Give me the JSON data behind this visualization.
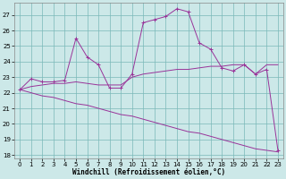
{
  "background_color": "#cce8e8",
  "grid_color": "#7ab8b8",
  "line_color": "#993399",
  "xlim": [
    -0.5,
    23.5
  ],
  "ylim": [
    17.8,
    27.8
  ],
  "yticks": [
    18,
    19,
    20,
    21,
    22,
    23,
    24,
    25,
    26,
    27
  ],
  "xticks": [
    0,
    1,
    2,
    3,
    4,
    5,
    6,
    7,
    8,
    9,
    10,
    11,
    12,
    13,
    14,
    15,
    16,
    17,
    18,
    19,
    20,
    21,
    22,
    23
  ],
  "xlabel": "Windchill (Refroidissement éolien,°C)",
  "series1_x": [
    0,
    1,
    2,
    3,
    4,
    5,
    6,
    7,
    8,
    9,
    10,
    11,
    12,
    13,
    14,
    15,
    16,
    17,
    18,
    19,
    20,
    21,
    22,
    23
  ],
  "series1_y": [
    22.2,
    22.9,
    22.7,
    22.7,
    22.8,
    25.5,
    24.3,
    23.8,
    22.3,
    22.3,
    23.2,
    26.5,
    26.7,
    26.9,
    27.4,
    27.2,
    25.2,
    24.8,
    23.6,
    23.4,
    23.8,
    23.2,
    23.5,
    18.3
  ],
  "series2_x": [
    0,
    1,
    2,
    3,
    4,
    5,
    6,
    7,
    8,
    9,
    10,
    11,
    12,
    13,
    14,
    15,
    16,
    17,
    18,
    19,
    20,
    21,
    22,
    23
  ],
  "series2_y": [
    22.2,
    22.0,
    21.8,
    21.7,
    21.5,
    21.3,
    21.2,
    21.0,
    20.8,
    20.6,
    20.5,
    20.3,
    20.1,
    19.9,
    19.7,
    19.5,
    19.4,
    19.2,
    19.0,
    18.8,
    18.6,
    18.4,
    18.3,
    18.2
  ],
  "series3_x": [
    0,
    1,
    2,
    3,
    4,
    5,
    6,
    7,
    8,
    9,
    10,
    11,
    12,
    13,
    14,
    15,
    16,
    17,
    18,
    19,
    20,
    21,
    22,
    23
  ],
  "series3_y": [
    22.2,
    22.4,
    22.5,
    22.6,
    22.6,
    22.7,
    22.6,
    22.5,
    22.5,
    22.5,
    23.0,
    23.2,
    23.3,
    23.4,
    23.5,
    23.5,
    23.6,
    23.7,
    23.7,
    23.8,
    23.8,
    23.2,
    23.8,
    23.8
  ],
  "axis_fontsize": 5.5,
  "tick_fontsize": 5.0
}
